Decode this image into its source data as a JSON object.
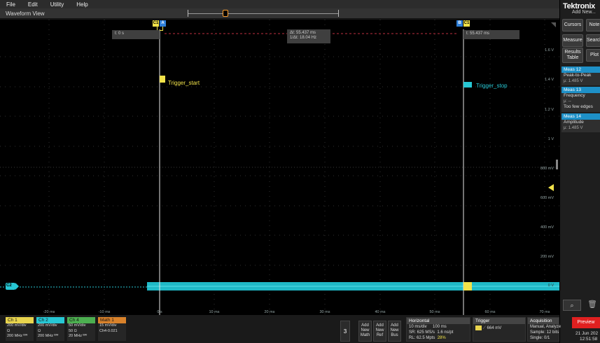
{
  "menu": [
    "File",
    "Edit",
    "Utility",
    "Help"
  ],
  "waveform_view": {
    "title": "Waveform View"
  },
  "cursor_a": {
    "tag": "A",
    "channel": "C1",
    "readout": "t: 0 s"
  },
  "cursor_b": {
    "tag": "B",
    "channel": "C1",
    "readout": "t: 55.437 ms"
  },
  "delta": {
    "dt": "Δt: 55.437 ms",
    "inv": "1/Δt: 18.04 Hz"
  },
  "trigger_labels": {
    "start": "Trigger_start",
    "stop": "Trigger_stop"
  },
  "volt_labels": [
    "1.6 V",
    "1.4 V",
    "1.2 V",
    "1 V",
    "800 mV",
    "600 mV",
    "400 mV",
    "200 mV",
    "0 V"
  ],
  "time_labels": [
    "-20 ms",
    "-10 ms",
    "0 s",
    "10 ms",
    "20 ms",
    "30 ms",
    "40 ms",
    "50 ms",
    "60 ms",
    "70 ms"
  ],
  "ground_marker": "C2",
  "right_panel": {
    "brand": "Tektronix",
    "add_new": "Add New...",
    "buttons": {
      "cursors": "Cursors",
      "note": "Note",
      "measure": "Measure",
      "search": "Search",
      "results_l1": "Results",
      "results_l2": "Table",
      "plot": "Plot"
    },
    "meas": [
      {
        "name": "Meas 12",
        "type": "Peak-to-Peak",
        "value": "μ: 1.485 V",
        "extra": ""
      },
      {
        "name": "Meas 13",
        "type": "Frequency",
        "value": "μ: --",
        "extra": "Too few edges"
      },
      {
        "name": "Meas 14",
        "type": "Amplitude",
        "value": "μ: 1.485 V",
        "extra": ""
      }
    ],
    "preview": "Preview",
    "date": "21 Jun 202",
    "time": "12:51:58",
    "colors": {
      "meas_header": "#1e90c7",
      "preview": "#e02020"
    }
  },
  "channels": [
    {
      "name": "Ch 1",
      "color": "#e8d44d",
      "l1": "200 mV/div",
      "l2": "Ω",
      "l3": "200 MHz ᴮᵂ"
    },
    {
      "name": "Ch 2",
      "color": "#27c7d4",
      "l1": "200 mV/div",
      "l2": "Ω",
      "l3": "200 MHz ᴮᵂ"
    },
    {
      "name": "Ch 4",
      "color": "#4caf50",
      "l1": "50 mV/div",
      "l2": "50 Ω",
      "l3": "20 MHz ᴮᵂ"
    },
    {
      "name": "Math 1",
      "color": "#d9822b",
      "l1": "15 mV/div",
      "l2": "Ch4-0.021",
      "l3": ""
    }
  ],
  "count_badge": "3",
  "add_buttons": [
    {
      "l1": "Add",
      "l2": "New",
      "l3": "Math"
    },
    {
      "l1": "Add",
      "l2": "New",
      "l3": "Ref"
    },
    {
      "l1": "Add",
      "l2": "New",
      "l3": "Bus"
    }
  ],
  "horizontal": {
    "title": "Horizontal",
    "scale": "10 ms/div",
    "record": "100 ms",
    "sample_rate": "SR: 625 MS/s",
    "pt": "1.6 ns/pt",
    "rl": "RL: 62.5 Mpts",
    "pct": "28%"
  },
  "trigger": {
    "title": "Trigger",
    "level": "664 mV"
  },
  "acquisition": {
    "title": "Acquisition",
    "mode": "Manual,",
    "analyze": "Analyze",
    "sample": "Sample: 12 bits",
    "single": "Single: 0/1"
  }
}
